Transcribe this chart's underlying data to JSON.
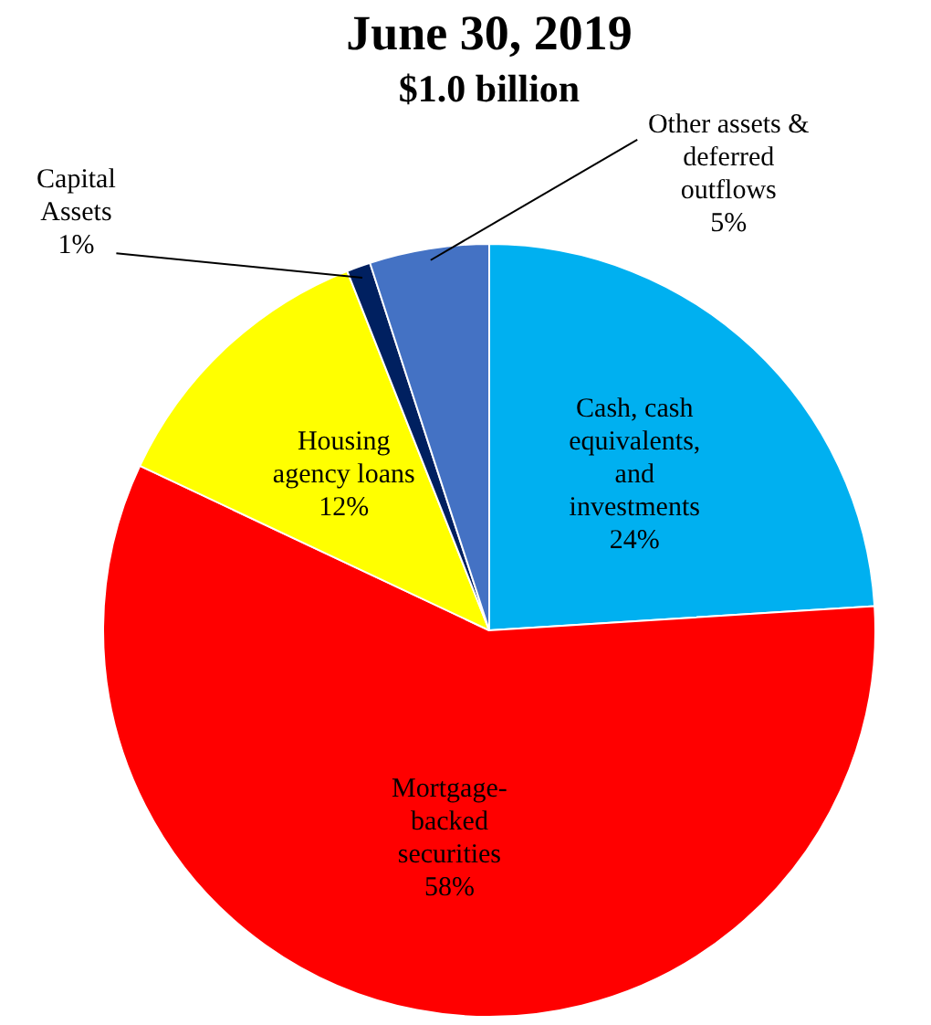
{
  "chart_data": {
    "type": "pie",
    "title": "June 30, 2019",
    "subtitle": "$1.0 billion",
    "categories": [
      "Cash, cash equivalents, and investments",
      "Mortgage-backed securities",
      "Housing agency loans",
      "Capital Assets",
      "Other assets & deferred outflows"
    ],
    "values": [
      24,
      58,
      12,
      1,
      5
    ],
    "colors": [
      "#00b0f0",
      "#ff0000",
      "#ffff00",
      "#002060",
      "#4472c4"
    ],
    "value_labels": [
      "24%",
      "58%",
      "12%",
      "1%",
      "5%"
    ],
    "legend": false
  }
}
